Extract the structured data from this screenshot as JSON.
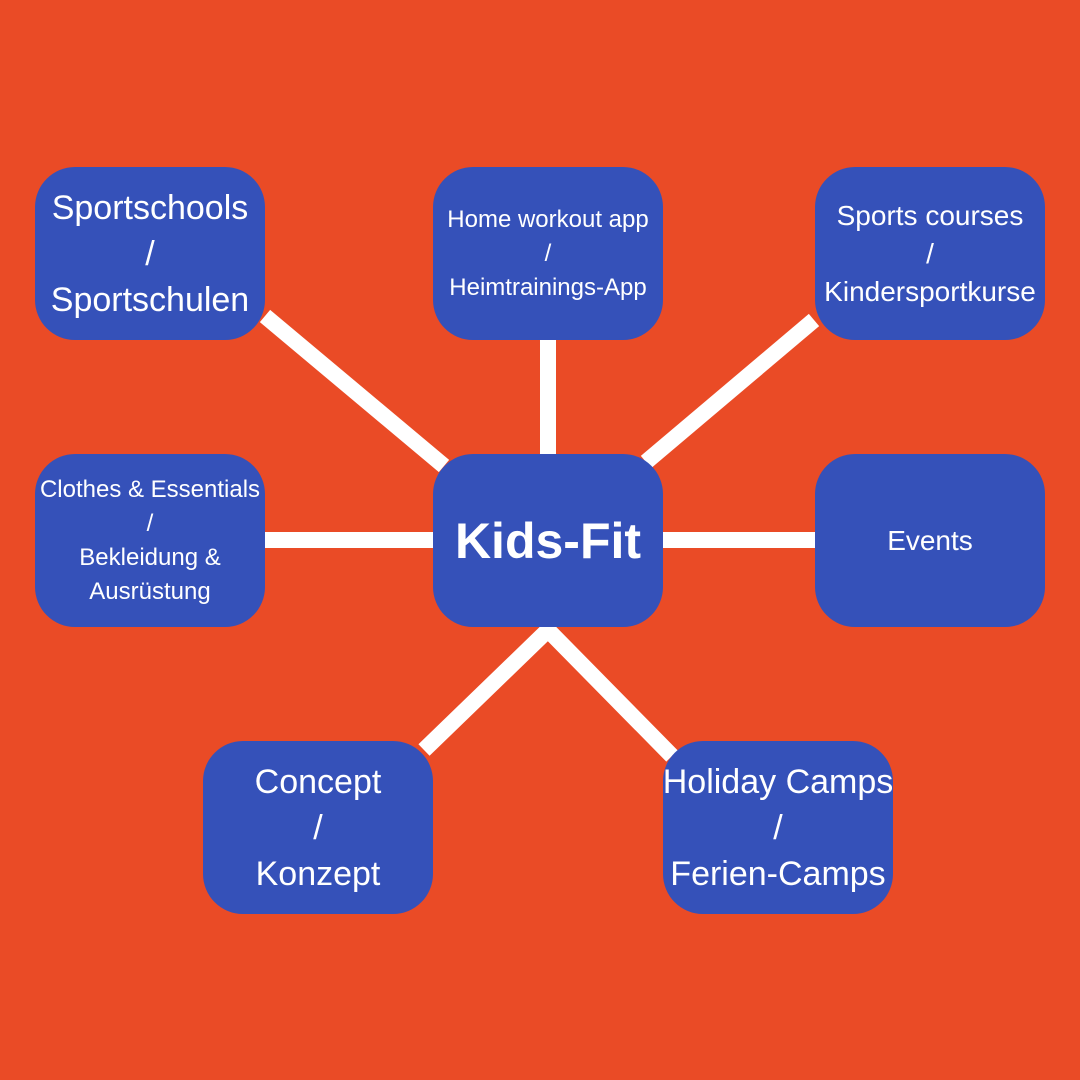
{
  "diagram": {
    "center": {
      "label": "Kids-Fit"
    },
    "nodes": {
      "sportschools": {
        "line1": "Sportschools",
        "line2": "/",
        "line3": "Sportschulen"
      },
      "home_workout": {
        "line1": "Home workout app",
        "line2": "/",
        "line3": "Heimtrainings-App"
      },
      "sports_courses": {
        "line1": "Sports courses",
        "line2": "/",
        "line3": "Kindersportkurse"
      },
      "clothes": {
        "line1": "Clothes & Essentials",
        "line2": "/",
        "line3": "Bekleidung &",
        "line4": "Ausrüstung"
      },
      "events": {
        "line1": "Events"
      },
      "concept": {
        "line1": "Concept",
        "line2": "/",
        "line3": "Konzept"
      },
      "holiday_camps": {
        "line1": "Holiday Camps",
        "line2": "/",
        "line3": "Ferien-Camps"
      }
    }
  },
  "colors": {
    "background": "#ea4b26",
    "node_fill": "#3551b9",
    "text": "#ffffff",
    "connector": "#ffffff"
  }
}
